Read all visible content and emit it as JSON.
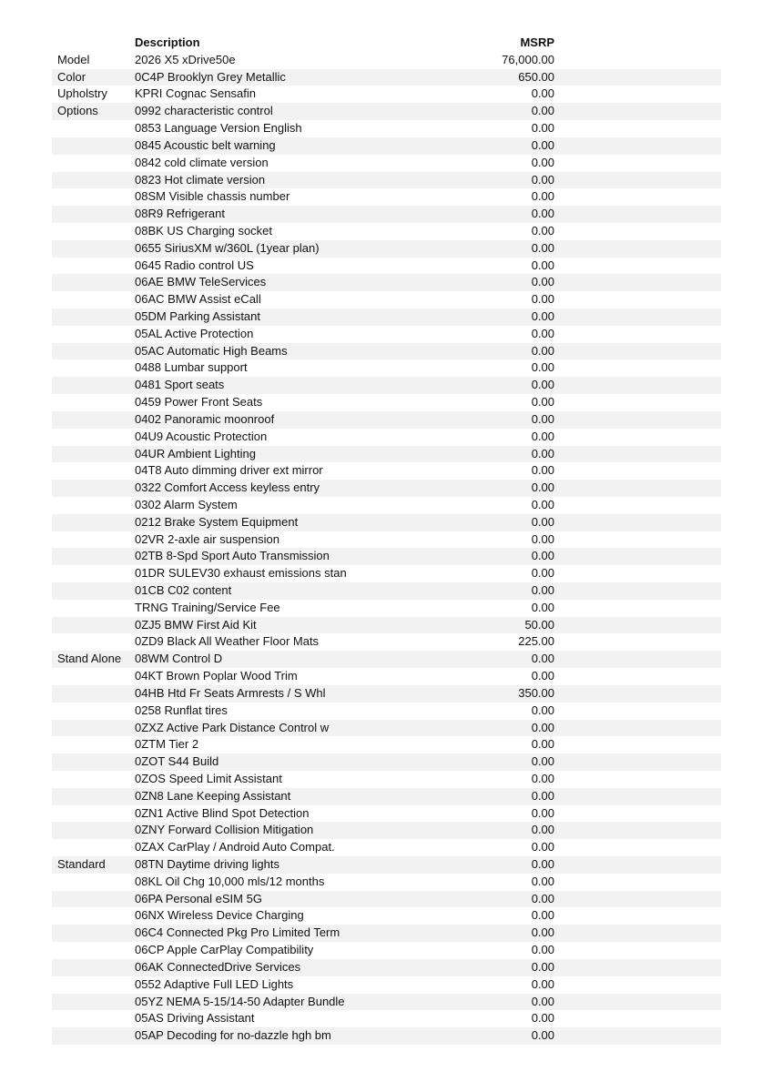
{
  "header": {
    "description": "Description",
    "msrp": "MSRP"
  },
  "rows": [
    {
      "category": "Model",
      "description": "2026 X5 xDrive50e",
      "msrp": "76,000.00"
    },
    {
      "category": "Color",
      "description": "0C4P Brooklyn Grey Metallic",
      "msrp": "650.00"
    },
    {
      "category": "Upholstry",
      "description": "KPRI Cognac Sensafin",
      "msrp": "0.00"
    },
    {
      "category": "Options",
      "description": "0992 characteristic control",
      "msrp": "0.00"
    },
    {
      "category": "",
      "description": "0853 Language Version English",
      "msrp": "0.00"
    },
    {
      "category": "",
      "description": "0845 Acoustic belt warning",
      "msrp": "0.00"
    },
    {
      "category": "",
      "description": "0842 cold climate version",
      "msrp": "0.00"
    },
    {
      "category": "",
      "description": "0823 Hot climate version",
      "msrp": "0.00"
    },
    {
      "category": "",
      "description": "08SM Visible chassis number",
      "msrp": "0.00"
    },
    {
      "category": "",
      "description": "08R9 Refrigerant",
      "msrp": "0.00"
    },
    {
      "category": "",
      "description": "08BK US Charging socket",
      "msrp": "0.00"
    },
    {
      "category": "",
      "description": "0655 SiriusXM w/360L (1year plan)",
      "msrp": "0.00"
    },
    {
      "category": "",
      "description": "0645 Radio control US",
      "msrp": "0.00"
    },
    {
      "category": "",
      "description": "06AE BMW TeleServices",
      "msrp": "0.00"
    },
    {
      "category": "",
      "description": "06AC BMW Assist eCall",
      "msrp": "0.00"
    },
    {
      "category": "",
      "description": "05DM Parking Assistant",
      "msrp": "0.00"
    },
    {
      "category": "",
      "description": "05AL Active Protection",
      "msrp": "0.00"
    },
    {
      "category": "",
      "description": "05AC Automatic High Beams",
      "msrp": "0.00"
    },
    {
      "category": "",
      "description": "0488 Lumbar support",
      "msrp": "0.00"
    },
    {
      "category": "",
      "description": "0481 Sport seats",
      "msrp": "0.00"
    },
    {
      "category": "",
      "description": "0459 Power Front Seats",
      "msrp": "0.00"
    },
    {
      "category": "",
      "description": "0402 Panoramic moonroof",
      "msrp": "0.00"
    },
    {
      "category": "",
      "description": "04U9 Acoustic Protection",
      "msrp": "0.00"
    },
    {
      "category": "",
      "description": "04UR Ambient Lighting",
      "msrp": "0.00"
    },
    {
      "category": "",
      "description": "04T8 Auto dimming driver ext mirror",
      "msrp": "0.00"
    },
    {
      "category": "",
      "description": "0322 Comfort Access keyless entry",
      "msrp": "0.00"
    },
    {
      "category": "",
      "description": "0302 Alarm System",
      "msrp": "0.00"
    },
    {
      "category": "",
      "description": "0212 Brake System Equipment",
      "msrp": "0.00"
    },
    {
      "category": "",
      "description": "02VR 2-axle air suspension",
      "msrp": "0.00"
    },
    {
      "category": "",
      "description": "02TB 8-Spd Sport Auto Transmission",
      "msrp": "0.00"
    },
    {
      "category": "",
      "description": "01DR SULEV30 exhaust emissions stan",
      "msrp": "0.00"
    },
    {
      "category": "",
      "description": "01CB C02 content",
      "msrp": "0.00"
    },
    {
      "category": "",
      "description": "TRNG Training/Service Fee",
      "msrp": "0.00"
    },
    {
      "category": "",
      "description": "0ZJ5 BMW First Aid Kit",
      "msrp": "50.00"
    },
    {
      "category": "",
      "description": "0ZD9 Black All Weather Floor Mats",
      "msrp": "225.00"
    },
    {
      "category": "Stand Alone",
      "description": "08WM Control D",
      "msrp": "0.00"
    },
    {
      "category": "",
      "description": "04KT Brown Poplar Wood Trim",
      "msrp": "0.00"
    },
    {
      "category": "",
      "description": "04HB Htd Fr Seats Armrests / S Whl",
      "msrp": "350.00"
    },
    {
      "category": "",
      "description": "0258 Runflat tires",
      "msrp": "0.00"
    },
    {
      "category": "",
      "description": "0ZXZ Active Park Distance Control w",
      "msrp": "0.00"
    },
    {
      "category": "",
      "description": "0ZTM Tier 2",
      "msrp": "0.00"
    },
    {
      "category": "",
      "description": "0ZOT S44 Build",
      "msrp": "0.00"
    },
    {
      "category": "",
      "description": "0ZOS Speed Limit Assistant",
      "msrp": "0.00"
    },
    {
      "category": "",
      "description": "0ZN8 Lane Keeping Assistant",
      "msrp": "0.00"
    },
    {
      "category": "",
      "description": "0ZN1 Active Blind Spot Detection",
      "msrp": "0.00"
    },
    {
      "category": "",
      "description": "0ZNY Forward Collision Mitigation",
      "msrp": "0.00"
    },
    {
      "category": "",
      "description": "0ZAX CarPlay / Android Auto Compat.",
      "msrp": "0.00"
    },
    {
      "category": "Standard",
      "description": "08TN Daytime driving lights",
      "msrp": "0.00"
    },
    {
      "category": "",
      "description": "08KL Oil Chg 10,000 mls/12 months",
      "msrp": "0.00"
    },
    {
      "category": "",
      "description": "06PA Personal eSIM 5G",
      "msrp": "0.00"
    },
    {
      "category": "",
      "description": "06NX Wireless Device Charging",
      "msrp": "0.00"
    },
    {
      "category": "",
      "description": "06C4 Connected Pkg Pro Limited Term",
      "msrp": "0.00"
    },
    {
      "category": "",
      "description": "06CP Apple CarPlay Compatibility",
      "msrp": "0.00"
    },
    {
      "category": "",
      "description": "06AK ConnectedDrive Services",
      "msrp": "0.00"
    },
    {
      "category": "",
      "description": "0552 Adaptive Full LED Lights",
      "msrp": "0.00"
    },
    {
      "category": "",
      "description": "05YZ NEMA 5-15/14-50 Adapter Bundle",
      "msrp": "0.00"
    },
    {
      "category": "",
      "description": "05AS Driving Assistant",
      "msrp": "0.00"
    },
    {
      "category": "",
      "description": "05AP Decoding for no-dazzle hgh bm",
      "msrp": "0.00"
    }
  ]
}
